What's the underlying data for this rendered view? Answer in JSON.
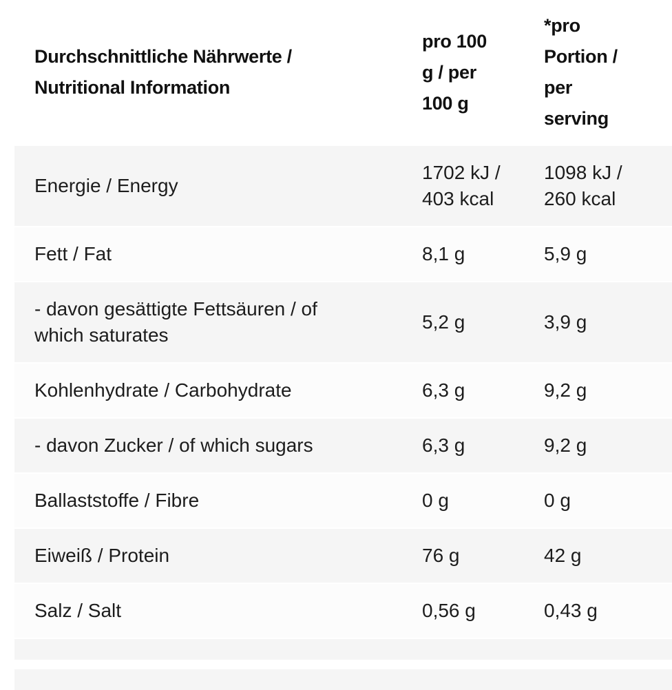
{
  "colors": {
    "row_odd": "#f5f5f5",
    "row_even": "#fcfcfc",
    "separator": "#ffffff",
    "text": "#1d1d1d",
    "header_text": "#111111",
    "page_bg": "#ffffff"
  },
  "table": {
    "header": {
      "nutrient": "Durchschnittliche Nährwerte /\nNutritional Information",
      "per_100g": "pro 100\ng / per\n100 g",
      "per_serving": "*pro\nPortion /\nper\nserving"
    },
    "rows": [
      {
        "label": "Energie / Energy",
        "per_100g": "1702 kJ /\n403 kcal",
        "per_serving": "1098 kJ /\n260 kcal"
      },
      {
        "label": "Fett / Fat",
        "per_100g": "8,1 g",
        "per_serving": "5,9 g"
      },
      {
        "label": "- davon gesättigte Fettsäuren / of\nwhich saturates",
        "per_100g": "5,2 g",
        "per_serving": "3,9 g"
      },
      {
        "label": "Kohlenhydrate / Carbohydrate",
        "per_100g": "6,3 g",
        "per_serving": "9,2 g"
      },
      {
        "label": "- davon Zucker / of which sugars",
        "per_100g": "6,3 g",
        "per_serving": "9,2 g"
      },
      {
        "label": "Ballaststoffe / Fibre",
        "per_100g": "0 g",
        "per_serving": "0 g"
      },
      {
        "label": "Eiweiß / Protein",
        "per_100g": "76 g",
        "per_serving": "42 g"
      },
      {
        "label": "Salz / Salt",
        "per_100g": "0,56 g",
        "per_serving": "0,43 g"
      }
    ]
  }
}
